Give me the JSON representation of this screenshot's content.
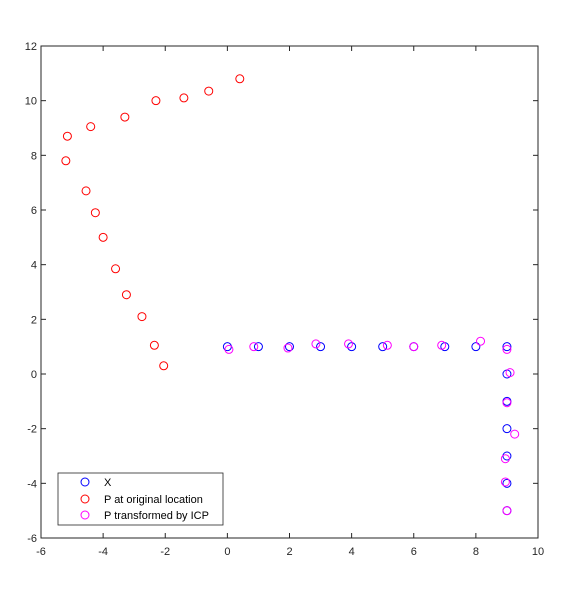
{
  "chart_data": {
    "type": "scatter",
    "title": "",
    "xlabel": "",
    "ylabel": "",
    "xlim": [
      -6,
      10
    ],
    "ylim": [
      -6,
      12
    ],
    "xticks": [
      -6,
      -4,
      -2,
      0,
      2,
      4,
      6,
      8,
      10
    ],
    "yticks": [
      -6,
      -4,
      -2,
      0,
      2,
      4,
      6,
      8,
      10,
      12
    ],
    "grid": false,
    "legend_position": "bottom-left",
    "series": [
      {
        "name": "X",
        "color": "#0000ff",
        "marker": "circle-open",
        "points": [
          [
            0,
            1
          ],
          [
            1,
            1
          ],
          [
            2,
            1
          ],
          [
            3,
            1
          ],
          [
            4,
            1
          ],
          [
            5,
            1
          ],
          [
            6,
            1
          ],
          [
            7,
            1
          ],
          [
            8,
            1
          ],
          [
            9,
            1
          ],
          [
            9,
            0
          ],
          [
            9,
            -1
          ],
          [
            9,
            -2
          ],
          [
            9,
            -3
          ],
          [
            9,
            -4
          ],
          [
            9,
            -5
          ]
        ]
      },
      {
        "name": "P at original location",
        "color": "#ff0000",
        "marker": "circle-open",
        "points": [
          [
            0.4,
            10.8
          ],
          [
            -0.6,
            10.35
          ],
          [
            -1.4,
            10.1
          ],
          [
            -2.3,
            10.0
          ],
          [
            -3.3,
            9.4
          ],
          [
            -4.4,
            9.05
          ],
          [
            -5.15,
            8.7
          ],
          [
            -5.2,
            7.8
          ],
          [
            -4.55,
            6.7
          ],
          [
            -4.25,
            5.9
          ],
          [
            -4.0,
            5.0
          ],
          [
            -3.6,
            3.85
          ],
          [
            -3.25,
            2.9
          ],
          [
            -2.75,
            2.1
          ],
          [
            -2.35,
            1.05
          ],
          [
            -2.05,
            0.3
          ]
        ]
      },
      {
        "name": "P transformed by ICP",
        "color": "#ff00ff",
        "marker": "circle-open",
        "points": [
          [
            0.05,
            0.9
          ],
          [
            0.85,
            1.0
          ],
          [
            1.95,
            0.95
          ],
          [
            2.85,
            1.1
          ],
          [
            3.9,
            1.1
          ],
          [
            5.15,
            1.05
          ],
          [
            6.0,
            1.0
          ],
          [
            6.9,
            1.05
          ],
          [
            8.15,
            1.2
          ],
          [
            9.0,
            0.9
          ],
          [
            9.1,
            0.05
          ],
          [
            9.0,
            -1.05
          ],
          [
            9.25,
            -2.2
          ],
          [
            8.95,
            -3.1
          ],
          [
            8.95,
            -3.95
          ],
          [
            9.0,
            -5.0
          ]
        ]
      }
    ]
  }
}
